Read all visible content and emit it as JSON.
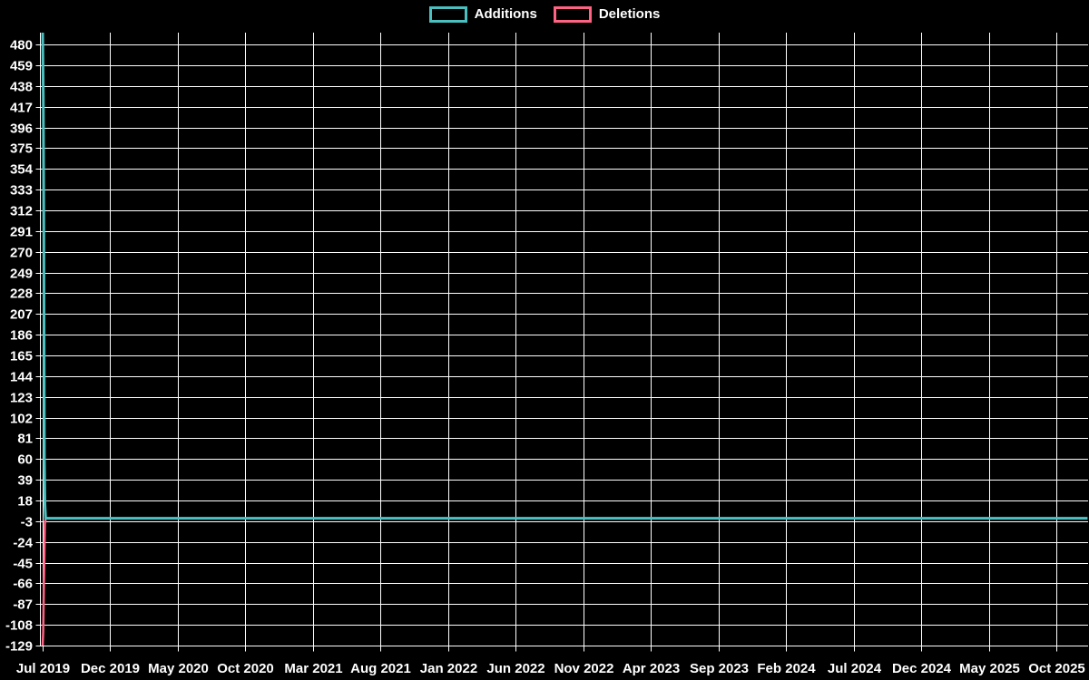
{
  "chart_data": {
    "type": "line",
    "title": "",
    "xlabel": "",
    "ylabel": "",
    "background_color": "#000000",
    "grid": true,
    "grid_color": "#ffffff",
    "text_color": "#ffffff",
    "legend_position": "top-center",
    "x_unit": "months after Jul 2019 (weekly data)",
    "x_tick_labels": [
      "Jul 2019",
      "Dec 2019",
      "May 2020",
      "Oct 2020",
      "Mar 2021",
      "Aug 2021",
      "Jan 2022",
      "Jun 2022",
      "Nov 2022",
      "Apr 2023",
      "Sep 2023",
      "Feb 2024",
      "Jul 2024",
      "Dec 2024",
      "May 2025",
      "Oct 2025"
    ],
    "x_tick_positions_months": [
      0,
      5,
      10,
      15,
      20,
      25,
      30,
      35,
      40,
      45,
      50,
      55,
      60,
      65,
      70,
      75
    ],
    "x_range_months": [
      0,
      77.3
    ],
    "y_tick_labels": [
      480,
      459,
      438,
      417,
      396,
      375,
      354,
      333,
      312,
      291,
      270,
      249,
      228,
      207,
      186,
      165,
      144,
      123,
      102,
      81,
      60,
      39,
      18,
      -3,
      -24,
      -45,
      -66,
      -87,
      -108,
      -129
    ],
    "y_range": [
      -129,
      492
    ],
    "series": [
      {
        "name": "Additions",
        "color": "#4bc0c0",
        "stroke_width": 3,
        "points_month_value": [
          [
            0,
            492
          ],
          [
            0.05,
            427
          ],
          [
            0.09,
            284
          ],
          [
            0.13,
            60
          ],
          [
            0.17,
            14
          ],
          [
            0.22,
            0
          ],
          [
            77.3,
            0
          ]
        ]
      },
      {
        "name": "Deletions",
        "color": "#ff6384",
        "stroke_width": 2.5,
        "points_month_value": [
          [
            0,
            -129
          ],
          [
            0.04,
            -115
          ],
          [
            0.08,
            -77
          ],
          [
            0.12,
            -42
          ],
          [
            0.16,
            -6
          ],
          [
            0.22,
            0
          ],
          [
            77.3,
            0
          ]
        ]
      }
    ]
  }
}
